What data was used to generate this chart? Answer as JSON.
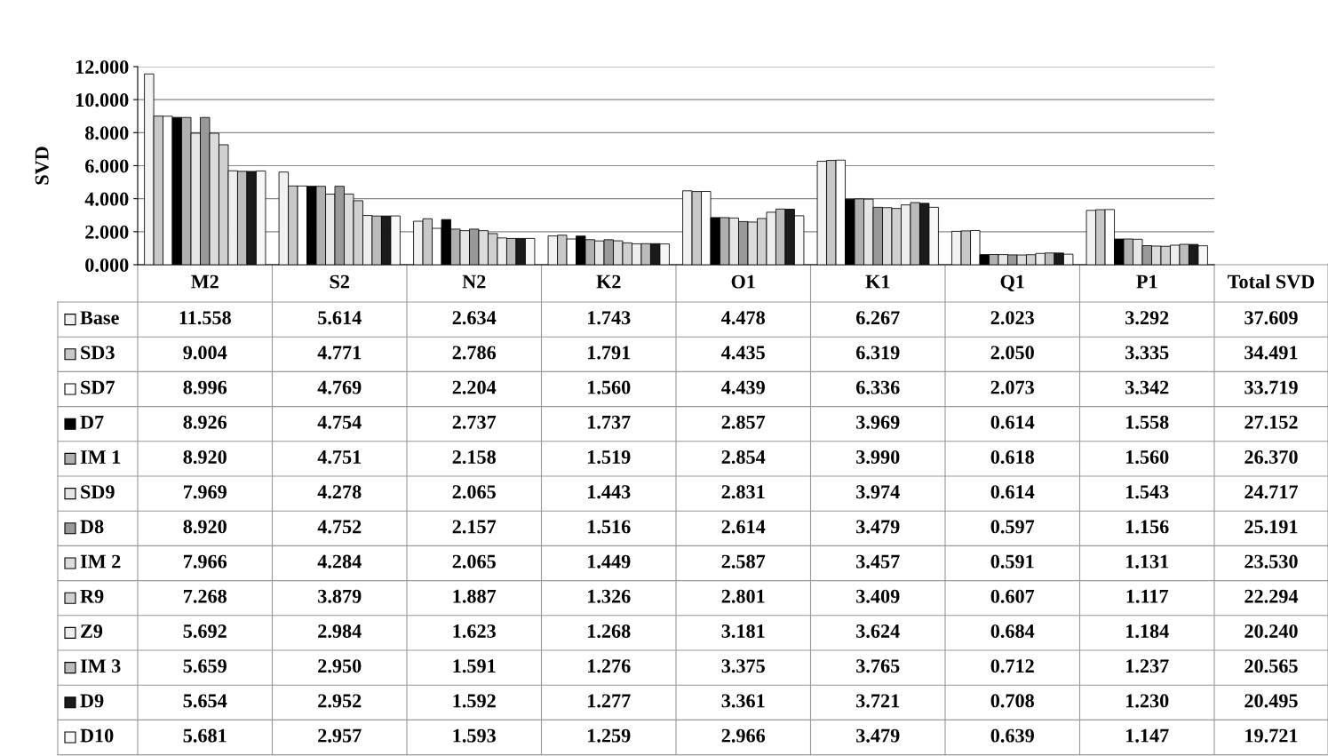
{
  "chart_data": {
    "type": "bar",
    "ylabel": "SVD",
    "categories": [
      "M2",
      "S2",
      "N2",
      "K2",
      "O1",
      "K1",
      "Q1",
      "P1"
    ],
    "ylim": [
      0,
      12
    ],
    "yticks": [
      {
        "value": 0,
        "label": "0.000"
      },
      {
        "value": 2,
        "label": "2.000"
      },
      {
        "value": 4,
        "label": "4.000"
      },
      {
        "value": 6,
        "label": "6.000"
      },
      {
        "value": 8,
        "label": "8.000"
      },
      {
        "value": 10,
        "label": "10.000"
      },
      {
        "value": 12,
        "label": "12.000"
      }
    ],
    "grid": "y",
    "legend": "left",
    "series": [
      {
        "name": "Base",
        "color": "#f2f2f2",
        "values": [
          11.558,
          5.614,
          2.634,
          1.743,
          4.478,
          6.267,
          2.023,
          3.292
        ],
        "value_labels": [
          "11.558",
          "5.614",
          "2.634",
          "1.743",
          "4.478",
          "6.267",
          "2.023",
          "3.292"
        ]
      },
      {
        "name": "SD3",
        "color": "#c8c8c8",
        "values": [
          9.004,
          4.771,
          2.786,
          1.791,
          4.435,
          6.319,
          2.05,
          3.335
        ],
        "value_labels": [
          "9.004",
          "4.771",
          "2.786",
          "1.791",
          "4.435",
          "6.319",
          "2.050",
          "3.335"
        ]
      },
      {
        "name": "SD7",
        "color": "#ffffff",
        "values": [
          8.996,
          4.769,
          2.204,
          1.56,
          4.439,
          6.336,
          2.073,
          3.342
        ],
        "value_labels": [
          "8.996",
          "4.769",
          "2.204",
          "1.560",
          "4.439",
          "6.336",
          "2.073",
          "3.342"
        ]
      },
      {
        "name": "D7",
        "color": "#000000",
        "values": [
          8.926,
          4.754,
          2.737,
          1.737,
          2.857,
          3.969,
          0.614,
          1.558
        ],
        "value_labels": [
          "8.926",
          "4.754",
          "2.737",
          "1.737",
          "2.857",
          "3.969",
          "0.614",
          "1.558"
        ]
      },
      {
        "name": "IM 1",
        "color": "#b0b0b0",
        "values": [
          8.92,
          4.751,
          2.158,
          1.519,
          2.854,
          3.99,
          0.618,
          1.56
        ],
        "value_labels": [
          "8.920",
          "4.751",
          "2.158",
          "1.519",
          "2.854",
          "3.990",
          "0.618",
          "1.560"
        ]
      },
      {
        "name": "SD9",
        "color": "#e6e6e6",
        "values": [
          7.969,
          4.278,
          2.065,
          1.443,
          2.831,
          3.974,
          0.614,
          1.543
        ],
        "value_labels": [
          "7.969",
          "4.278",
          "2.065",
          "1.443",
          "2.831",
          "3.974",
          "0.614",
          "1.543"
        ]
      },
      {
        "name": "D8",
        "color": "#999999",
        "values": [
          8.92,
          4.752,
          2.157,
          1.516,
          2.614,
          3.479,
          0.597,
          1.156
        ],
        "value_labels": [
          "8.920",
          "4.752",
          "2.157",
          "1.516",
          "2.614",
          "3.479",
          "0.597",
          "1.156"
        ]
      },
      {
        "name": "IM 2",
        "color": "#dcdcdc",
        "values": [
          7.966,
          4.284,
          2.065,
          1.449,
          2.587,
          3.457,
          0.591,
          1.131
        ],
        "value_labels": [
          "7.966",
          "4.284",
          "2.065",
          "1.449",
          "2.587",
          "3.457",
          "0.591",
          "1.131"
        ]
      },
      {
        "name": "R9",
        "color": "#d0d0d0",
        "values": [
          7.268,
          3.879,
          1.887,
          1.326,
          2.801,
          3.409,
          0.607,
          1.117
        ],
        "value_labels": [
          "7.268",
          "3.879",
          "1.887",
          "1.326",
          "2.801",
          "3.409",
          "0.607",
          "1.117"
        ]
      },
      {
        "name": "Z9",
        "color": "#eeeeee",
        "values": [
          5.692,
          2.984,
          1.623,
          1.268,
          3.181,
          3.624,
          0.684,
          1.184
        ],
        "value_labels": [
          "5.692",
          "2.984",
          "1.623",
          "1.268",
          "3.181",
          "3.624",
          "0.684",
          "1.184"
        ]
      },
      {
        "name": "IM 3",
        "color": "#bcbcbc",
        "values": [
          5.659,
          2.95,
          1.591,
          1.276,
          3.375,
          3.765,
          0.712,
          1.237
        ],
        "value_labels": [
          "5.659",
          "2.950",
          "1.591",
          "1.276",
          "3.375",
          "3.765",
          "0.712",
          "1.237"
        ]
      },
      {
        "name": "D9",
        "color": "#1a1a1a",
        "values": [
          5.654,
          2.952,
          1.592,
          1.277,
          3.361,
          3.721,
          0.708,
          1.23
        ],
        "value_labels": [
          "5.654",
          "2.952",
          "1.592",
          "1.277",
          "3.361",
          "3.721",
          "0.708",
          "1.230"
        ]
      },
      {
        "name": "D10",
        "color": "#f7f7f7",
        "values": [
          5.681,
          2.957,
          1.593,
          1.259,
          2.966,
          3.479,
          0.639,
          1.147
        ],
        "value_labels": [
          "5.681",
          "2.957",
          "1.593",
          "1.259",
          "2.966",
          "3.479",
          "0.639",
          "1.147"
        ]
      }
    ],
    "annotations": [
      "Total SVD",
      "37.609",
      "34.491",
      "33.719",
      "27.152",
      "26.370",
      "24.717",
      "25.191",
      "23.530",
      "22.294",
      "20.240",
      "20.565",
      "20.495",
      "19.721"
    ]
  }
}
